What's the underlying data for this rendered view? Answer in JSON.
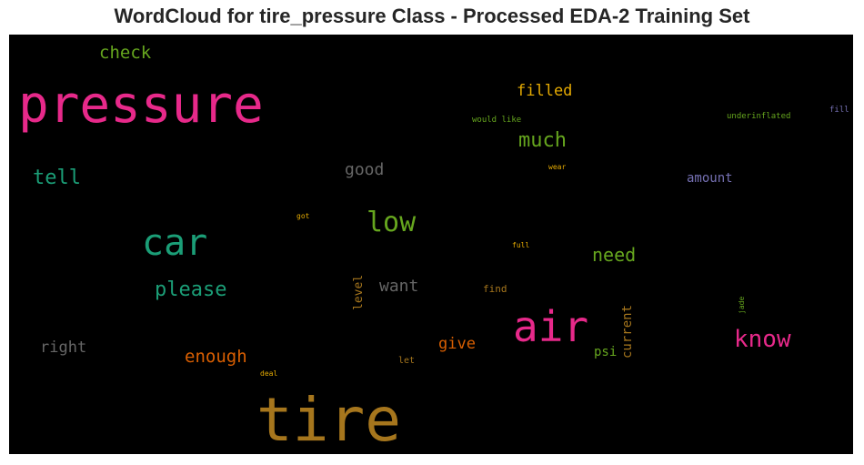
{
  "title": "WordCloud for tire_pressure Class - Processed EDA-2 Training Set",
  "words": {
    "pressure": {
      "text": "pressure",
      "color": "#e7298a"
    },
    "tire": {
      "text": "tire",
      "color": "#a6761d"
    },
    "air": {
      "text": "air",
      "color": "#e7298a"
    },
    "car": {
      "text": "car",
      "color": "#1b9e77"
    },
    "low": {
      "text": "low",
      "color": "#66a61e"
    },
    "know": {
      "text": "know",
      "color": "#e7298a"
    },
    "check": {
      "text": "check",
      "color": "#66a61e"
    },
    "tell": {
      "text": "tell",
      "color": "#1b9e77"
    },
    "much": {
      "text": "much",
      "color": "#66a61e"
    },
    "filled": {
      "text": "filled",
      "color": "#e6ab02"
    },
    "good": {
      "text": "good",
      "color": "#666666"
    },
    "please": {
      "text": "please",
      "color": "#1b9e77"
    },
    "need": {
      "text": "need",
      "color": "#66a61e"
    },
    "want": {
      "text": "want",
      "color": "#666666"
    },
    "enough": {
      "text": "enough",
      "color": "#d95f02"
    },
    "give": {
      "text": "give",
      "color": "#d95f02"
    },
    "right": {
      "text": "right",
      "color": "#666666"
    },
    "amount": {
      "text": "amount",
      "color": "#7570b3"
    },
    "current": {
      "text": "current",
      "color": "#a6761d"
    },
    "level": {
      "text": "level",
      "color": "#a6761d"
    },
    "psi": {
      "text": "psi",
      "color": "#66a61e"
    },
    "find": {
      "text": "find",
      "color": "#a6761d"
    },
    "would_like": {
      "text": "would like",
      "color": "#66a61e"
    },
    "underinflated": {
      "text": "underinflated",
      "color": "#66a61e"
    },
    "fill": {
      "text": "fill",
      "color": "#7570b3"
    },
    "wear": {
      "text": "wear",
      "color": "#e6ab02"
    },
    "got": {
      "text": "got",
      "color": "#e6ab02"
    },
    "full": {
      "text": "full",
      "color": "#e6ab02"
    },
    "jade": {
      "text": "jade",
      "color": "#66a61e"
    },
    "deal": {
      "text": "deal",
      "color": "#e6ab02"
    },
    "let": {
      "text": "let",
      "color": "#a6761d"
    }
  }
}
